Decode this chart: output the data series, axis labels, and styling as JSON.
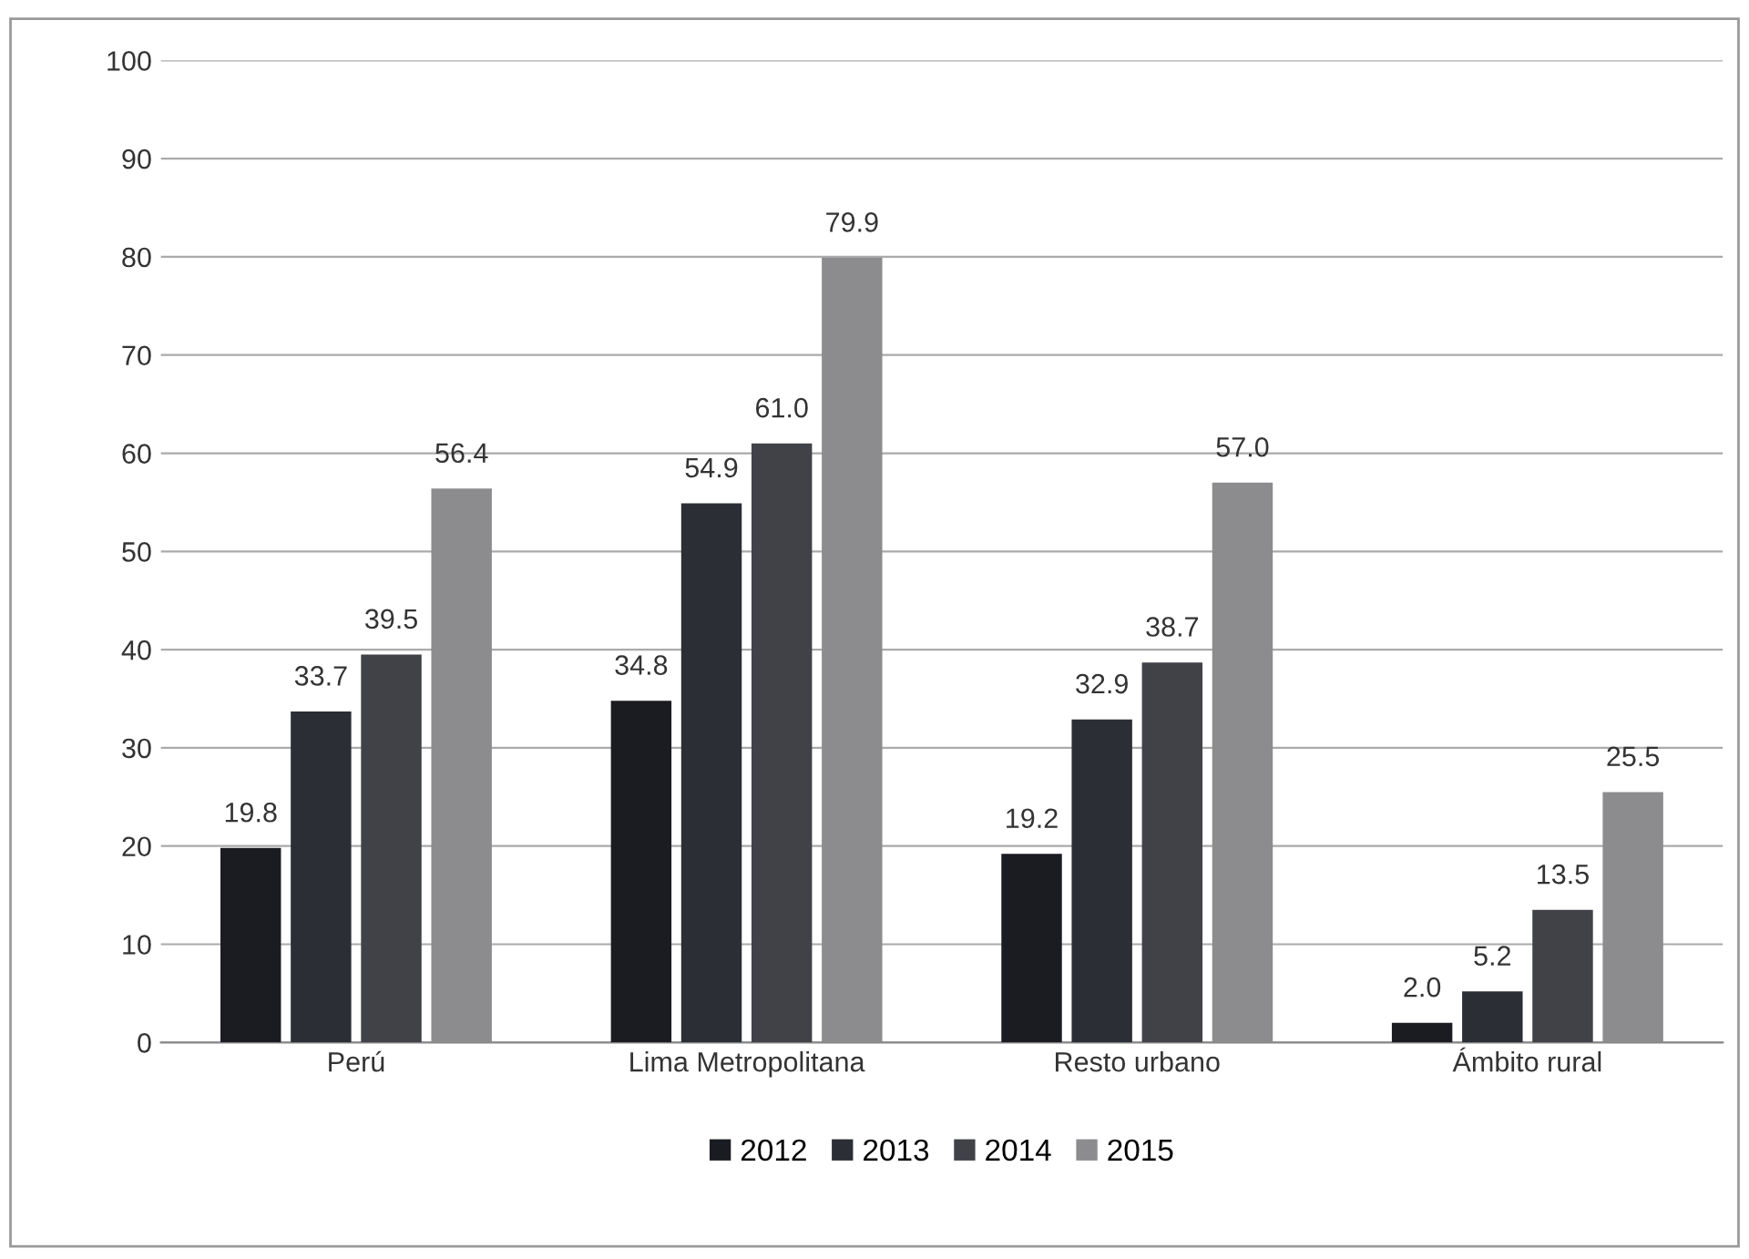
{
  "chart_data": {
    "type": "bar",
    "categories": [
      "Perú",
      "Lima Metropolitana",
      "Resto urbano",
      "Ámbito rural"
    ],
    "series": [
      {
        "name": "2012",
        "color": "#1b1c22",
        "values": [
          19.8,
          34.8,
          19.2,
          2.0
        ],
        "value_labels": [
          "19.8",
          "34.8",
          "19.2",
          "2.0"
        ]
      },
      {
        "name": "2013",
        "color": "#2b2e35",
        "values": [
          33.7,
          54.9,
          32.9,
          5.2
        ],
        "value_labels": [
          "33.7",
          "54.9",
          "32.9",
          "5.2"
        ]
      },
      {
        "name": "2014",
        "color": "#404248",
        "values": [
          39.5,
          61.0,
          38.7,
          13.5
        ],
        "value_labels": [
          "39.5",
          "61.0",
          "38.7",
          "13.5"
        ]
      },
      {
        "name": "2015",
        "color": "#8c8c8e",
        "values": [
          56.4,
          79.9,
          57.0,
          25.5
        ],
        "value_labels": [
          "56.4",
          "79.9",
          "57.0",
          "25.5"
        ]
      }
    ],
    "ylim": [
      0,
      100
    ],
    "yticks": [
      0,
      10,
      20,
      30,
      40,
      50,
      60,
      70,
      80,
      90,
      100
    ],
    "grid": "y",
    "legend": "bottom"
  }
}
